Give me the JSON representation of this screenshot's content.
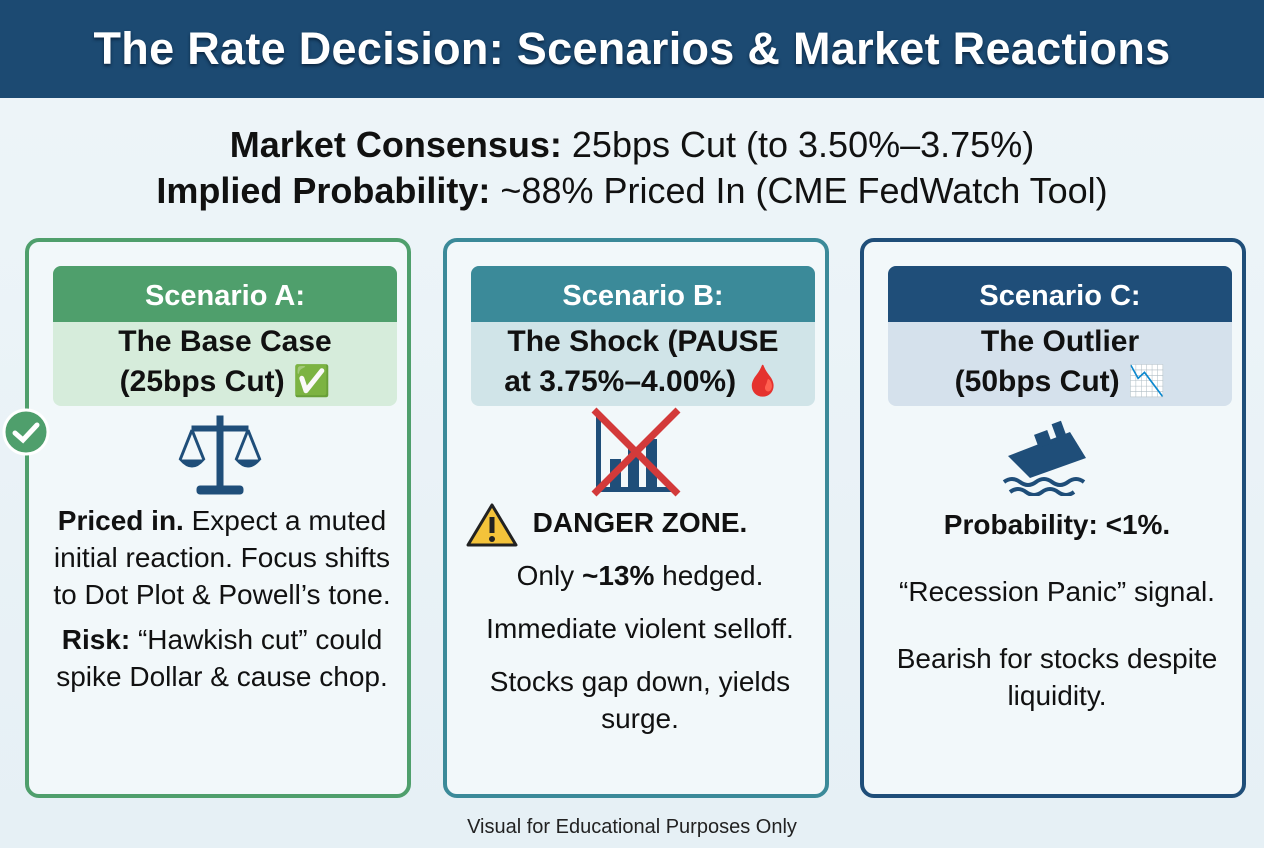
{
  "header": {
    "title": "The Rate Decision: Scenarios & Market Reactions"
  },
  "consensus": {
    "label": "Market Consensus:",
    "value": "25bps Cut (to 3.50%–3.75%)"
  },
  "probability": {
    "label": "Implied Probability:",
    "value": "~88% Priced In (CME FedWatch Tool)"
  },
  "scenarios": [
    {
      "label": "Scenario A:",
      "title_lines": [
        "The Base Case",
        "(25bps Cut) ✅"
      ],
      "color": "#4f9f6c",
      "light": "#d6ecdb",
      "body": [
        [
          {
            "text": "Priced in.",
            "bold": true
          },
          {
            "text": " Expect a muted initial reaction. Focus shifts to Dot Plot & Powell’s tone.",
            "bold": false
          }
        ],
        [
          {
            "text": "Risk:",
            "bold": true
          },
          {
            "text": " “Hawkish cut” could spike Dollar & cause chop.",
            "bold": false
          }
        ]
      ]
    },
    {
      "label": "Scenario B:",
      "title_lines": [
        "The Shock (PAUSE",
        "at 3.75%–4.00%) 🩸"
      ],
      "color": "#3b8a99",
      "light": "#d0e4e8",
      "body": [
        [
          {
            "text": "DANGER ZONE.",
            "bold": true
          }
        ],
        [
          {
            "text": "Only ",
            "bold": false
          },
          {
            "text": "~13%",
            "bold": true
          },
          {
            "text": " hedged.",
            "bold": false
          }
        ],
        [
          {
            "text": "Immediate violent selloff.",
            "bold": false
          }
        ],
        [
          {
            "text": "Stocks gap down, yields surge.",
            "bold": false
          }
        ]
      ]
    },
    {
      "label": "Scenario C:",
      "title_lines": [
        "The Outlier",
        "(50bps Cut) 📉"
      ],
      "color": "#1f4e79",
      "light": "#d5e1ec",
      "body": [
        [
          {
            "text": "Probability: <1%.",
            "bold": true
          }
        ],
        [
          {
            "text": "“Recession Panic” signal.",
            "bold": false
          }
        ],
        [
          {
            "text": "Bearish for stocks despite liquidity.",
            "bold": false
          }
        ]
      ]
    }
  ],
  "footer": "Visual for Educational Purposes Only"
}
